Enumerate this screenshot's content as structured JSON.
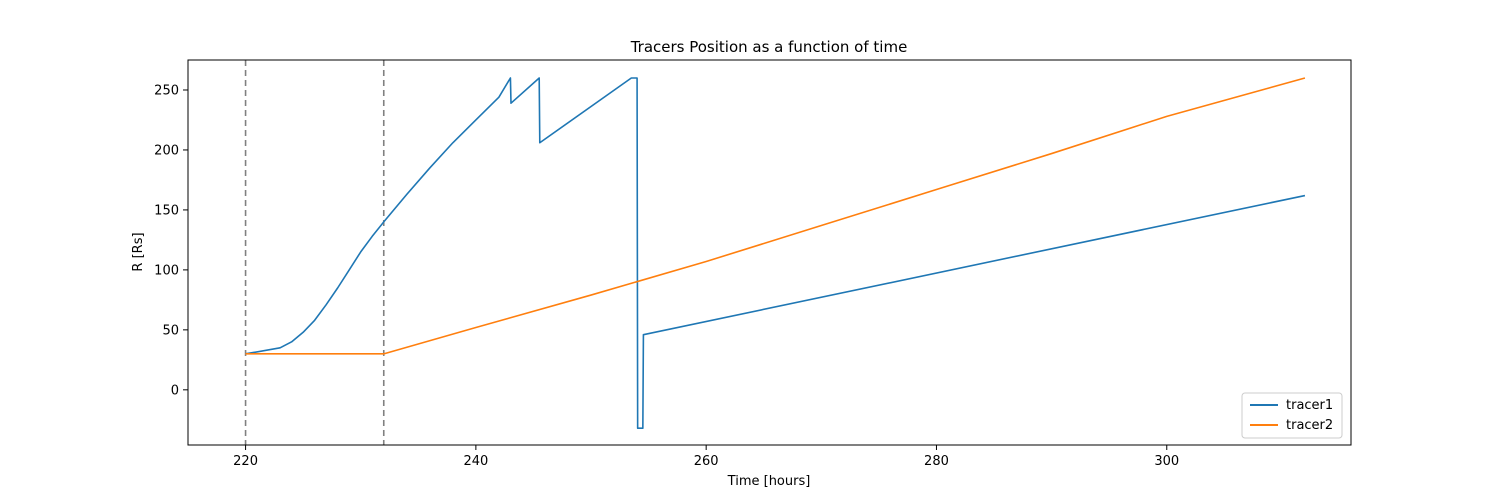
{
  "chart_data": {
    "type": "line",
    "title": "Tracers Position as a function of time",
    "xlabel": "Time [hours]",
    "ylabel": "R [Rs]",
    "xlim": [
      215,
      316
    ],
    "ylim": [
      -46,
      275
    ],
    "xticks": [
      220,
      240,
      260,
      280,
      300
    ],
    "yticks": [
      0,
      50,
      100,
      150,
      200,
      250
    ],
    "grid": false,
    "legend": "bottom-right",
    "vlines": [
      220,
      232
    ],
    "series": [
      {
        "name": "tracer1",
        "color": "#1f77b4",
        "points": [
          [
            220,
            30
          ],
          [
            223,
            35
          ],
          [
            224,
            40
          ],
          [
            225,
            48
          ],
          [
            226,
            58
          ],
          [
            227,
            71
          ],
          [
            228,
            85
          ],
          [
            229,
            100
          ],
          [
            230,
            115
          ],
          [
            231,
            128
          ],
          [
            232,
            140
          ],
          [
            234,
            163
          ],
          [
            236,
            185
          ],
          [
            238,
            206
          ],
          [
            240,
            225
          ],
          [
            242,
            244
          ],
          [
            243,
            260
          ],
          [
            243.05,
            239
          ],
          [
            245.5,
            260
          ],
          [
            245.55,
            206
          ],
          [
            253.5,
            260
          ],
          [
            254,
            260
          ],
          [
            254.05,
            -32
          ],
          [
            254.5,
            -32
          ],
          [
            254.55,
            46
          ],
          [
            312,
            162
          ]
        ]
      },
      {
        "name": "tracer2",
        "color": "#ff7f0e",
        "points": [
          [
            220,
            30
          ],
          [
            232,
            30
          ],
          [
            240,
            52
          ],
          [
            250,
            79
          ],
          [
            260,
            107
          ],
          [
            270,
            137
          ],
          [
            280,
            167
          ],
          [
            290,
            197
          ],
          [
            300,
            228
          ],
          [
            312,
            260
          ]
        ]
      }
    ]
  }
}
